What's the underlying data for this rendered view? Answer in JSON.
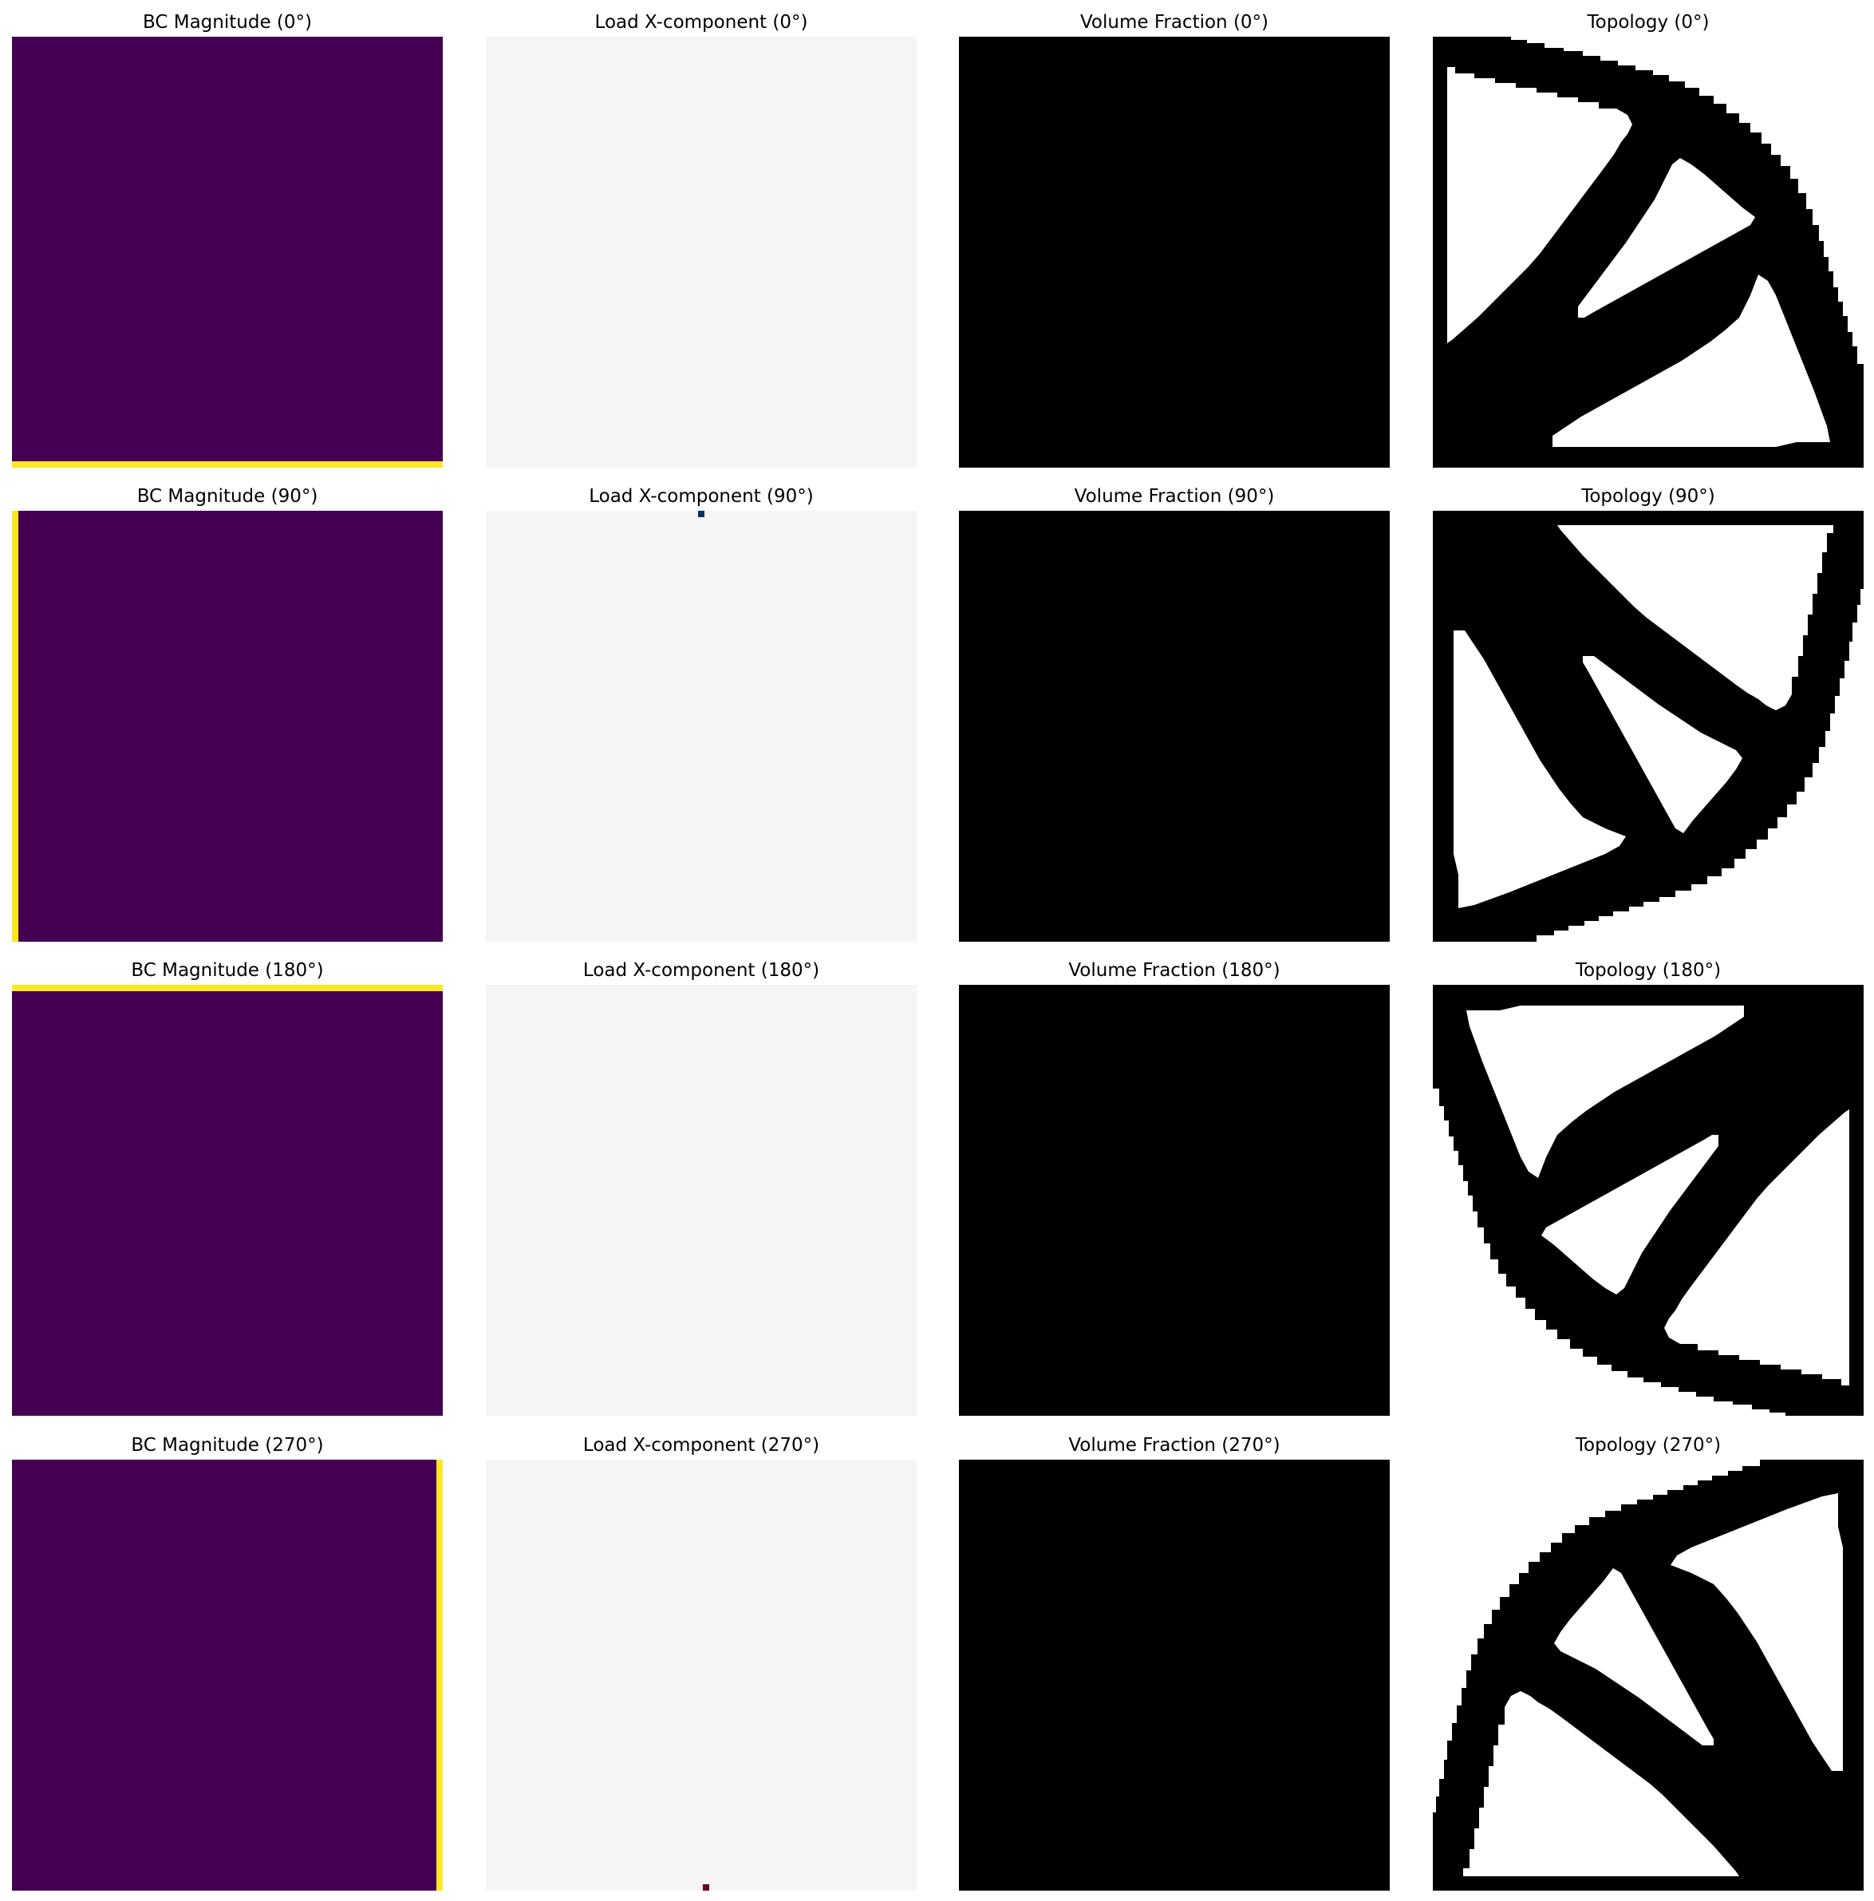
{
  "chart_data": [
    {
      "type": "heatmap",
      "title": "BC Magnitude (0°)",
      "colormap": "viridis",
      "grid": false,
      "axes": "off",
      "highlight_edge": "bottom",
      "background_color": "#440154",
      "highlight_color": "#fde725"
    },
    {
      "type": "heatmap",
      "title": "Load X-component (0°)",
      "colormap": "RdBu",
      "grid": false,
      "axes": "off",
      "background_color": "#f5f5f5"
    },
    {
      "type": "heatmap",
      "title": "Volume Fraction (0°)",
      "colormap": "gray",
      "grid": false,
      "axes": "off",
      "background_color": "#000000"
    },
    {
      "type": "heatmap",
      "title": "Topology (0°)",
      "colormap": "binary",
      "grid": false,
      "axes": "off",
      "rotation_deg": 0
    },
    {
      "type": "heatmap",
      "title": "BC Magnitude (90°)",
      "colormap": "viridis",
      "grid": false,
      "axes": "off",
      "highlight_edge": "left",
      "background_color": "#440154",
      "highlight_color": "#fde725"
    },
    {
      "type": "heatmap",
      "title": "Load X-component (90°)",
      "colormap": "RdBu",
      "grid": false,
      "axes": "off",
      "background_color": "#f5f5f5",
      "load_marker": {
        "edge": "top",
        "color": "#053061"
      }
    },
    {
      "type": "heatmap",
      "title": "Volume Fraction (90°)",
      "colormap": "gray",
      "grid": false,
      "axes": "off",
      "background_color": "#000000"
    },
    {
      "type": "heatmap",
      "title": "Topology (90°)",
      "colormap": "binary",
      "grid": false,
      "axes": "off",
      "rotation_deg": 90
    },
    {
      "type": "heatmap",
      "title": "BC Magnitude (180°)",
      "colormap": "viridis",
      "grid": false,
      "axes": "off",
      "highlight_edge": "top",
      "background_color": "#440154",
      "highlight_color": "#fde725"
    },
    {
      "type": "heatmap",
      "title": "Load X-component (180°)",
      "colormap": "RdBu",
      "grid": false,
      "axes": "off",
      "background_color": "#f5f5f5"
    },
    {
      "type": "heatmap",
      "title": "Volume Fraction (180°)",
      "colormap": "gray",
      "grid": false,
      "axes": "off",
      "background_color": "#000000"
    },
    {
      "type": "heatmap",
      "title": "Topology (180°)",
      "colormap": "binary",
      "grid": false,
      "axes": "off",
      "rotation_deg": 180
    },
    {
      "type": "heatmap",
      "title": "BC Magnitude (270°)",
      "colormap": "viridis",
      "grid": false,
      "axes": "off",
      "highlight_edge": "right",
      "background_color": "#440154",
      "highlight_color": "#fde725"
    },
    {
      "type": "heatmap",
      "title": "Load X-component (270°)",
      "colormap": "RdBu",
      "grid": false,
      "axes": "off",
      "background_color": "#f5f5f5",
      "load_marker": {
        "edge": "bottom",
        "color": "#67001f"
      }
    },
    {
      "type": "heatmap",
      "title": "Volume Fraction (270°)",
      "colormap": "gray",
      "grid": false,
      "axes": "off",
      "background_color": "#000000"
    },
    {
      "type": "heatmap",
      "title": "Topology (270°)",
      "colormap": "binary",
      "grid": false,
      "axes": "off",
      "rotation_deg": 270
    }
  ]
}
